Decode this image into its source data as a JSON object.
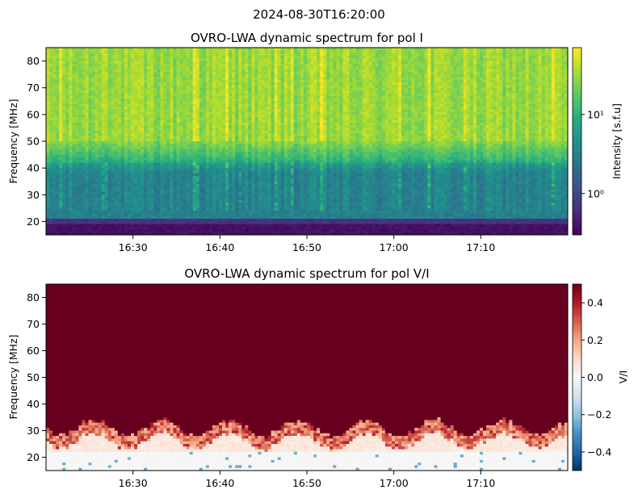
{
  "figure": {
    "suptitle": "2024-08-30T16:20:00"
  },
  "chart_data": [
    {
      "type": "heatmap",
      "title": "OVRO-LWA dynamic spectrum for pol I",
      "xlabel": "",
      "ylabel": "Frequency [MHz]",
      "x_time_range": [
        "16:20",
        "17:20"
      ],
      "xlim_minutes_after_1600": [
        20,
        80
      ],
      "ylim": [
        15,
        85
      ],
      "x_ticks": [
        {
          "value": 30,
          "label": "16:30"
        },
        {
          "value": 40,
          "label": "16:40"
        },
        {
          "value": 50,
          "label": "16:50"
        },
        {
          "value": 60,
          "label": "17:00"
        },
        {
          "value": 70,
          "label": "17:10"
        }
      ],
      "y_ticks": [
        20,
        30,
        40,
        50,
        60,
        70,
        80
      ],
      "colormap": "viridis",
      "color_scale": "log",
      "colorbar": {
        "label": "Intensity [s.f.u]",
        "range": [
          0.3,
          70
        ],
        "ticks": [
          {
            "value": 1,
            "label": "10⁰"
          },
          {
            "value": 10,
            "label": "10¹"
          }
        ]
      },
      "grid": false,
      "description_bands": [
        {
          "freq_range": [
            15,
            21
          ],
          "level": "very low (~0.3–0.6)"
        },
        {
          "freq_range": [
            21,
            42
          ],
          "level": "low–medium (~1–5)"
        },
        {
          "freq_range": [
            42,
            85
          ],
          "level": "high (~10–50)"
        }
      ]
    },
    {
      "type": "heatmap",
      "title": "OVRO-LWA dynamic spectrum for pol V/I",
      "xlabel": "",
      "ylabel": "Frequency [MHz]",
      "x_time_range": [
        "16:20",
        "17:20"
      ],
      "xlim_minutes_after_1600": [
        20,
        80
      ],
      "ylim": [
        15,
        85
      ],
      "x_ticks": [
        {
          "value": 30,
          "label": "16:30"
        },
        {
          "value": 40,
          "label": "16:40"
        },
        {
          "value": 50,
          "label": "16:50"
        },
        {
          "value": 60,
          "label": "17:00"
        },
        {
          "value": 70,
          "label": "17:10"
        }
      ],
      "y_ticks": [
        20,
        30,
        40,
        50,
        60,
        70,
        80
      ],
      "colormap": "RdBu_r",
      "color_scale": "linear",
      "colorbar": {
        "label": "V/I",
        "range": [
          -0.5,
          0.5
        ],
        "ticks": [
          {
            "value": 0.4,
            "label": "0.4"
          },
          {
            "value": 0.2,
            "label": "0.2"
          },
          {
            "value": 0.0,
            "label": "0.0"
          },
          {
            "value": -0.2,
            "label": "−0.2"
          },
          {
            "value": -0.4,
            "label": "−0.4"
          }
        ]
      },
      "grid": false,
      "description_bands": [
        {
          "freq_range": [
            15,
            27
          ],
          "level": "near 0 (~−0.05 to 0.05)"
        },
        {
          "freq_range": [
            27,
            35
          ],
          "level": "positive, ramping (~0.1–0.4)"
        },
        {
          "freq_range": [
            35,
            85
          ],
          "level": "saturated positive (~0.5)"
        }
      ]
    }
  ]
}
